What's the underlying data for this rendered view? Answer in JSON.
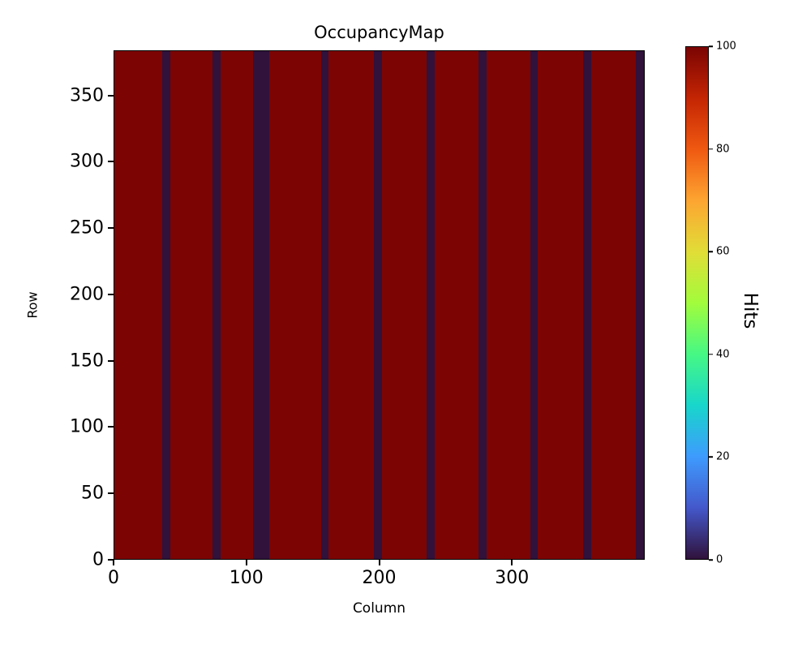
{
  "figure": {
    "title": "OccupancyMap",
    "xlabel": "Column",
    "ylabel": "Row",
    "colorbar_label": "Hits"
  },
  "chart_data": {
    "type": "heatmap",
    "title": "OccupancyMap",
    "xlabel": "Column",
    "ylabel": "Row",
    "x_range": [
      0,
      400
    ],
    "y_range": [
      0,
      384
    ],
    "x_ticks": [
      0,
      100,
      200,
      300
    ],
    "y_ticks": [
      0,
      50,
      100,
      150,
      200,
      250,
      300,
      350
    ],
    "background_value": 100,
    "dead_value": 0,
    "dead_column_ranges": [
      [
        36,
        42
      ],
      [
        74,
        80
      ],
      [
        105,
        117
      ],
      [
        156,
        162
      ],
      [
        196,
        202
      ],
      [
        236,
        242
      ],
      [
        275,
        281
      ],
      [
        314,
        320
      ],
      [
        354,
        360
      ],
      [
        394,
        400
      ]
    ],
    "colors": {
      "background_color": "#7c0403",
      "dead_color": "#30123b"
    },
    "colorbar": {
      "label": "Hits",
      "min": 0,
      "max": 100,
      "ticks": [
        0,
        20,
        40,
        60,
        80,
        100
      ],
      "colormap": "turbo",
      "gradient_stops": [
        "#30123b",
        "#4458cb",
        "#3e9bfe",
        "#18d6cb",
        "#46f884",
        "#a2fc3c",
        "#e1dd37",
        "#fda531",
        "#ef5911",
        "#c42503",
        "#7a0403"
      ]
    },
    "grid": false,
    "legend": false
  }
}
